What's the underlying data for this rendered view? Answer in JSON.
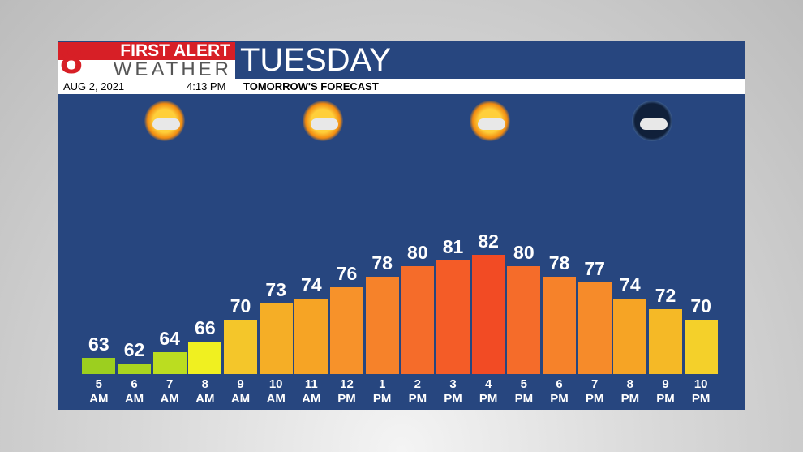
{
  "header": {
    "brand_top": "FIRST ALERT",
    "brand_bottom": "WEATHER",
    "date": "AUG 2, 2021",
    "time": "4:13 PM",
    "subtitle": "TOMORROW'S FORECAST"
  },
  "chart_data": {
    "type": "bar",
    "title": "TUESDAY",
    "categories": [
      "5 AM",
      "6 AM",
      "7 AM",
      "8 AM",
      "9 AM",
      "10 AM",
      "11 AM",
      "12 PM",
      "1 PM",
      "2 PM",
      "3 PM",
      "4 PM",
      "5 PM",
      "6 PM",
      "7 PM",
      "8 PM",
      "9 PM",
      "10 PM"
    ],
    "values": [
      63,
      62,
      64,
      66,
      70,
      73,
      74,
      76,
      78,
      80,
      81,
      82,
      80,
      78,
      77,
      74,
      72,
      70
    ],
    "colors": [
      "#9ccf1f",
      "#a9d51f",
      "#bbdd20",
      "#f0f020",
      "#f4c62a",
      "#f5ae26",
      "#f6a425",
      "#f7922a",
      "#f6822a",
      "#f56c2a",
      "#f45c27",
      "#f24b24",
      "#f56c2a",
      "#f6822a",
      "#f68b2a",
      "#f6a425",
      "#f5b926",
      "#f4d02a"
    ],
    "ylim": [
      60,
      100
    ]
  }
}
